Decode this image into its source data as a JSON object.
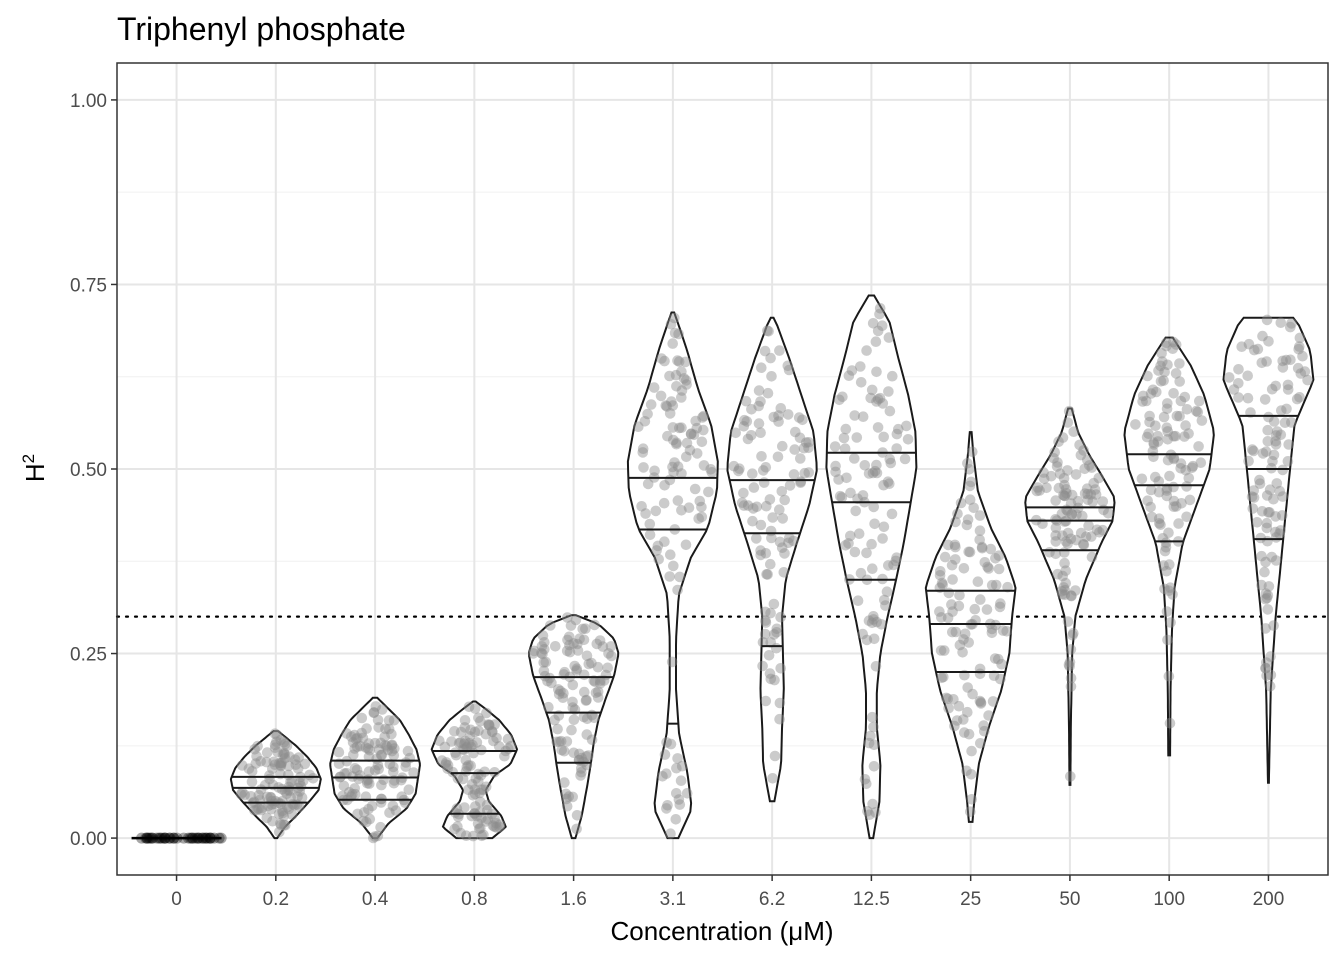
{
  "chart_data": {
    "type": "violin",
    "title": "Triphenyl phosphate",
    "xlabel": "Concentration (μM)",
    "ylabel": "H",
    "ylabel_superscript": "2",
    "ylim": [
      -0.05,
      1.05
    ],
    "yticks": [
      "0.00",
      "0.25",
      "0.50",
      "0.75",
      "1.00"
    ],
    "ytick_values": [
      0,
      0.25,
      0.5,
      0.75,
      1.0
    ],
    "reference_line": {
      "y": 0.3,
      "style": "dotted"
    },
    "grid": true,
    "categories": [
      "0",
      "0.2",
      "0.4",
      "0.8",
      "1.6",
      "3.1",
      "6.2",
      "12.5",
      "25",
      "50",
      "100",
      "200"
    ],
    "groups": [
      {
        "label": "0",
        "min": 0,
        "max": 0,
        "q1": 0,
        "median": 0,
        "q3": 0,
        "density": [
          [
            0,
            1
          ]
        ],
        "points_center": 0,
        "points_spread": 0
      },
      {
        "label": "0.2",
        "min": 0.0,
        "max": 0.145,
        "q1": 0.048,
        "median": 0.068,
        "q3": 0.083,
        "density": [
          [
            0.0,
            0.03
          ],
          [
            0.015,
            0.2
          ],
          [
            0.03,
            0.45
          ],
          [
            0.05,
            0.75
          ],
          [
            0.065,
            0.95
          ],
          [
            0.08,
            1.0
          ],
          [
            0.095,
            0.9
          ],
          [
            0.11,
            0.7
          ],
          [
            0.125,
            0.45
          ],
          [
            0.14,
            0.15
          ],
          [
            0.145,
            0.05
          ]
        ]
      },
      {
        "label": "0.4",
        "min": 0.0,
        "max": 0.19,
        "q1": 0.052,
        "median": 0.082,
        "q3": 0.105,
        "density": [
          [
            0.0,
            0.05
          ],
          [
            0.02,
            0.3
          ],
          [
            0.04,
            0.7
          ],
          [
            0.06,
            0.9
          ],
          [
            0.08,
            0.95
          ],
          [
            0.1,
            1.0
          ],
          [
            0.12,
            0.92
          ],
          [
            0.14,
            0.75
          ],
          [
            0.16,
            0.55
          ],
          [
            0.175,
            0.3
          ],
          [
            0.19,
            0.05
          ]
        ]
      },
      {
        "label": "0.8",
        "min": 0.0,
        "max": 0.185,
        "q1": 0.033,
        "median": 0.088,
        "q3": 0.118,
        "density": [
          [
            0.0,
            0.4
          ],
          [
            0.015,
            0.7
          ],
          [
            0.03,
            0.6
          ],
          [
            0.05,
            0.32
          ],
          [
            0.065,
            0.25
          ],
          [
            0.085,
            0.45
          ],
          [
            0.1,
            0.8
          ],
          [
            0.12,
            0.95
          ],
          [
            0.14,
            0.82
          ],
          [
            0.16,
            0.55
          ],
          [
            0.175,
            0.25
          ],
          [
            0.185,
            0.03
          ]
        ]
      },
      {
        "label": "1.6",
        "min": 0.0,
        "max": 0.302,
        "q1": 0.102,
        "median": 0.17,
        "q3": 0.218,
        "density": [
          [
            0.0,
            0.04
          ],
          [
            0.03,
            0.18
          ],
          [
            0.07,
            0.3
          ],
          [
            0.1,
            0.38
          ],
          [
            0.13,
            0.45
          ],
          [
            0.16,
            0.55
          ],
          [
            0.19,
            0.72
          ],
          [
            0.22,
            0.9
          ],
          [
            0.25,
            1.0
          ],
          [
            0.27,
            0.9
          ],
          [
            0.29,
            0.55
          ],
          [
            0.302,
            0.05
          ]
        ]
      },
      {
        "label": "3.1",
        "min": 0.0,
        "max": 0.712,
        "q1": 0.155,
        "median": 0.418,
        "q3": 0.488,
        "density": [
          [
            0.0,
            0.12
          ],
          [
            0.04,
            0.42
          ],
          [
            0.09,
            0.32
          ],
          [
            0.14,
            0.14
          ],
          [
            0.2,
            0.07
          ],
          [
            0.27,
            0.07
          ],
          [
            0.33,
            0.13
          ],
          [
            0.38,
            0.4
          ],
          [
            0.42,
            0.78
          ],
          [
            0.47,
            0.98
          ],
          [
            0.51,
            1.0
          ],
          [
            0.56,
            0.85
          ],
          [
            0.61,
            0.55
          ],
          [
            0.66,
            0.32
          ],
          [
            0.7,
            0.1
          ],
          [
            0.712,
            0.03
          ]
        ]
      },
      {
        "label": "6.2",
        "min": 0.05,
        "max": 0.705,
        "q1": 0.26,
        "median": 0.413,
        "q3": 0.485,
        "density": [
          [
            0.05,
            0.05
          ],
          [
            0.1,
            0.2
          ],
          [
            0.15,
            0.22
          ],
          [
            0.2,
            0.26
          ],
          [
            0.25,
            0.24
          ],
          [
            0.3,
            0.22
          ],
          [
            0.35,
            0.3
          ],
          [
            0.4,
            0.55
          ],
          [
            0.45,
            0.82
          ],
          [
            0.5,
            1.0
          ],
          [
            0.55,
            0.92
          ],
          [
            0.6,
            0.65
          ],
          [
            0.65,
            0.38
          ],
          [
            0.7,
            0.08
          ],
          [
            0.705,
            0.03
          ]
        ]
      },
      {
        "label": "12.5",
        "min": 0.0,
        "max": 0.735,
        "q1": 0.35,
        "median": 0.455,
        "q3": 0.522,
        "density": [
          [
            0.0,
            0.04
          ],
          [
            0.05,
            0.18
          ],
          [
            0.1,
            0.2
          ],
          [
            0.15,
            0.12
          ],
          [
            0.2,
            0.12
          ],
          [
            0.25,
            0.2
          ],
          [
            0.3,
            0.36
          ],
          [
            0.35,
            0.55
          ],
          [
            0.4,
            0.72
          ],
          [
            0.45,
            0.86
          ],
          [
            0.5,
            1.0
          ],
          [
            0.55,
            0.98
          ],
          [
            0.6,
            0.82
          ],
          [
            0.65,
            0.6
          ],
          [
            0.7,
            0.4
          ],
          [
            0.735,
            0.06
          ]
        ]
      },
      {
        "label": "25",
        "min": 0.022,
        "max": 0.55,
        "q1": 0.225,
        "median": 0.29,
        "q3": 0.335,
        "density": [
          [
            0.022,
            0.04
          ],
          [
            0.05,
            0.08
          ],
          [
            0.1,
            0.18
          ],
          [
            0.15,
            0.4
          ],
          [
            0.2,
            0.68
          ],
          [
            0.25,
            0.86
          ],
          [
            0.3,
            0.92
          ],
          [
            0.34,
            1.0
          ],
          [
            0.38,
            0.78
          ],
          [
            0.42,
            0.45
          ],
          [
            0.47,
            0.16
          ],
          [
            0.52,
            0.06
          ],
          [
            0.55,
            0.02
          ]
        ]
      },
      {
        "label": "50",
        "min": 0.072,
        "max": 0.582,
        "q1": 0.39,
        "median": 0.43,
        "q3": 0.448,
        "density": [
          [
            0.072,
            0.01
          ],
          [
            0.15,
            0.02
          ],
          [
            0.25,
            0.05
          ],
          [
            0.3,
            0.12
          ],
          [
            0.35,
            0.35
          ],
          [
            0.4,
            0.7
          ],
          [
            0.43,
            0.95
          ],
          [
            0.46,
            1.0
          ],
          [
            0.49,
            0.72
          ],
          [
            0.52,
            0.42
          ],
          [
            0.55,
            0.18
          ],
          [
            0.582,
            0.04
          ]
        ]
      },
      {
        "label": "100",
        "min": 0.112,
        "max": 0.678,
        "q1": 0.402,
        "median": 0.478,
        "q3": 0.52,
        "density": [
          [
            0.112,
            0.02
          ],
          [
            0.2,
            0.03
          ],
          [
            0.28,
            0.06
          ],
          [
            0.34,
            0.12
          ],
          [
            0.4,
            0.3
          ],
          [
            0.45,
            0.6
          ],
          [
            0.5,
            0.9
          ],
          [
            0.55,
            1.0
          ],
          [
            0.6,
            0.78
          ],
          [
            0.64,
            0.48
          ],
          [
            0.678,
            0.08
          ]
        ]
      },
      {
        "label": "200",
        "min": 0.075,
        "max": 0.705,
        "q1": 0.405,
        "median": 0.5,
        "q3": 0.572,
        "density": [
          [
            0.075,
            0.01
          ],
          [
            0.2,
            0.05
          ],
          [
            0.3,
            0.16
          ],
          [
            0.4,
            0.32
          ],
          [
            0.5,
            0.48
          ],
          [
            0.56,
            0.58
          ],
          [
            0.62,
            1.0
          ],
          [
            0.66,
            0.93
          ],
          [
            0.7,
            0.64
          ],
          [
            0.705,
            0.55
          ]
        ]
      }
    ]
  }
}
